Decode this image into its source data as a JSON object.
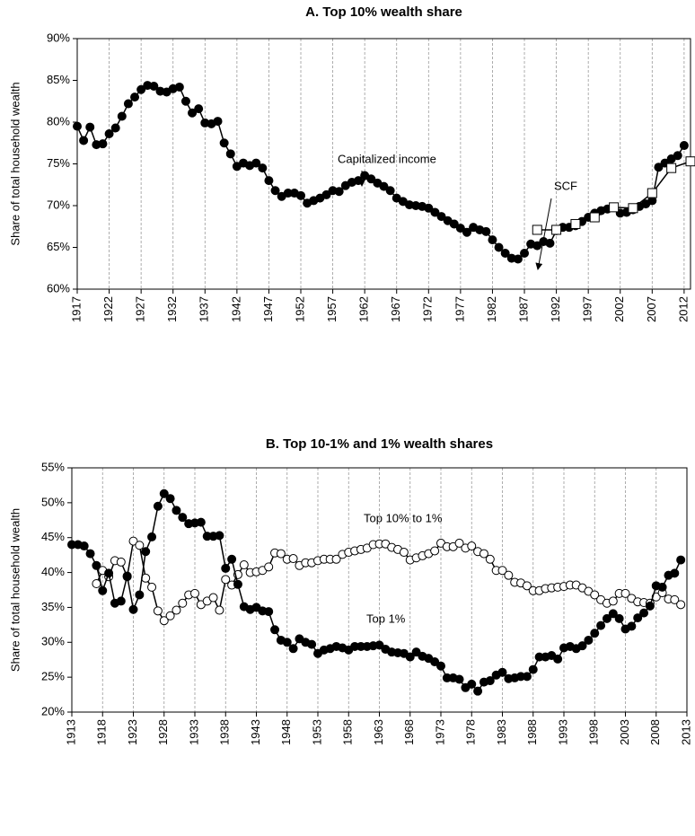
{
  "chart_data": [
    {
      "type": "line",
      "title": "A. Top 10% wealth share",
      "y_label": "Share of total household wealth",
      "annotations": [
        "Capitalized income",
        "SCF"
      ],
      "xlim": [
        1917,
        2013
      ],
      "xticks": [
        1917,
        1922,
        1927,
        1932,
        1937,
        1942,
        1947,
        1952,
        1957,
        1962,
        1967,
        1972,
        1977,
        1982,
        1987,
        1992,
        1997,
        2002,
        2007,
        2012
      ],
      "ylim": [
        60,
        90
      ],
      "yticks": [
        {
          "value": 60,
          "label": "60%"
        },
        {
          "value": 65,
          "label": "65%"
        },
        {
          "value": 70,
          "label": "70%"
        },
        {
          "value": 75,
          "label": "75%"
        },
        {
          "value": 80,
          "label": "80%"
        },
        {
          "value": 85,
          "label": "85%"
        },
        {
          "value": 90,
          "label": "90%"
        }
      ],
      "grid": true,
      "series": [
        {
          "marker": "filled-circle",
          "color": "#000000",
          "x": [
            1917,
            1918,
            1919,
            1920,
            1921,
            1922,
            1923,
            1924,
            1925,
            1926,
            1927,
            1928,
            1929,
            1930,
            1931,
            1932,
            1933,
            1934,
            1935,
            1936,
            1937,
            1938,
            1939,
            1940,
            1941,
            1942,
            1943,
            1944,
            1945,
            1946,
            1947,
            1948,
            1949,
            1950,
            1951,
            1952,
            1953,
            1954,
            1955,
            1956,
            1957,
            1958,
            1959,
            1960,
            1961,
            1962,
            1963,
            1964,
            1965,
            1966,
            1967,
            1968,
            1969,
            1970,
            1971,
            1972,
            1973,
            1974,
            1975,
            1976,
            1977,
            1978,
            1979,
            1980,
            1981,
            1982,
            1983,
            1984,
            1985,
            1986,
            1987,
            1988,
            1989,
            1990,
            1991,
            1992,
            1993,
            1994,
            1995,
            1996,
            1997,
            1998,
            1999,
            2000,
            2001,
            2002,
            2003,
            2004,
            2005,
            2006,
            2007,
            2008,
            2009,
            2010,
            2011,
            2012
          ],
          "values": [
            79.5,
            77.8,
            79.4,
            77.3,
            77.4,
            78.6,
            79.3,
            80.7,
            82.2,
            83.0,
            83.9,
            84.4,
            84.3,
            83.7,
            83.6,
            84.0,
            84.2,
            82.5,
            81.1,
            81.6,
            79.9,
            79.8,
            80.1,
            77.5,
            76.2,
            74.7,
            75.1,
            74.8,
            75.1,
            74.5,
            73.0,
            71.8,
            71.1,
            71.5,
            71.5,
            71.2,
            70.3,
            70.6,
            70.9,
            71.3,
            71.8,
            71.7,
            72.4,
            72.8,
            73.0,
            73.6,
            73.2,
            72.7,
            72.3,
            71.8,
            70.9,
            70.5,
            70.1,
            70.0,
            69.9,
            69.7,
            69.2,
            68.7,
            68.2,
            67.8,
            67.3,
            66.8,
            67.4,
            67.1,
            66.9,
            65.9,
            65.0,
            64.3,
            63.7,
            63.6,
            64.3,
            65.4,
            65.2,
            65.7,
            65.5,
            67.0,
            67.4,
            67.4,
            67.6,
            68.1,
            68.6,
            69.1,
            69.4,
            69.6,
            69.8,
            69.1,
            69.2,
            69.5,
            69.9,
            70.2,
            70.6,
            74.6,
            75.1,
            75.6,
            76.0,
            77.2
          ]
        },
        {
          "marker": "open-square",
          "color": "#000000",
          "x": [
            1989,
            1992,
            1995,
            1998,
            2001,
            2004,
            2007,
            2010,
            2013
          ],
          "values": [
            67.1,
            67.1,
            67.8,
            68.6,
            69.8,
            69.7,
            71.5,
            74.5,
            75.3
          ]
        }
      ]
    },
    {
      "type": "line",
      "title": "B. Top 10-1% and 1% wealth shares",
      "y_label": "Share of total household wealth",
      "annotations": [
        "Top 10% to 1%",
        "Top 1%"
      ],
      "xlim": [
        1913,
        2013
      ],
      "xticks": [
        1913,
        1918,
        1923,
        1928,
        1933,
        1938,
        1943,
        1948,
        1953,
        1958,
        1963,
        1968,
        1973,
        1978,
        1983,
        1988,
        1993,
        1998,
        2003,
        2008,
        2013
      ],
      "ylim": [
        20,
        55
      ],
      "yticks": [
        {
          "value": 20,
          "label": "20%"
        },
        {
          "value": 25,
          "label": "25%"
        },
        {
          "value": 30,
          "label": "30%"
        },
        {
          "value": 35,
          "label": "35%"
        },
        {
          "value": 40,
          "label": "40%"
        },
        {
          "value": 45,
          "label": "45%"
        },
        {
          "value": 50,
          "label": "50%"
        },
        {
          "value": 55,
          "label": "55%"
        }
      ],
      "grid": true,
      "x": [
        1913,
        1914,
        1915,
        1916,
        1917,
        1918,
        1919,
        1920,
        1921,
        1922,
        1923,
        1924,
        1925,
        1926,
        1927,
        1928,
        1929,
        1930,
        1931,
        1932,
        1933,
        1934,
        1935,
        1936,
        1937,
        1938,
        1939,
        1940,
        1941,
        1942,
        1943,
        1944,
        1945,
        1946,
        1947,
        1948,
        1949,
        1950,
        1951,
        1952,
        1953,
        1954,
        1955,
        1956,
        1957,
        1958,
        1959,
        1960,
        1961,
        1962,
        1963,
        1964,
        1965,
        1966,
        1967,
        1968,
        1969,
        1970,
        1971,
        1972,
        1973,
        1974,
        1975,
        1976,
        1977,
        1978,
        1979,
        1980,
        1981,
        1982,
        1983,
        1984,
        1985,
        1986,
        1987,
        1988,
        1989,
        1990,
        1991,
        1992,
        1993,
        1994,
        1995,
        1996,
        1997,
        1998,
        1999,
        2000,
        2001,
        2002,
        2003,
        2004,
        2005,
        2006,
        2007,
        2008,
        2009,
        2010,
        2011,
        2012
      ],
      "series": [
        {
          "marker": "open-circle",
          "color": "#000000",
          "values": [
            null,
            null,
            null,
            null,
            38.4,
            40.3,
            39.4,
            41.7,
            41.5,
            39.4,
            44.5,
            43.9,
            39.2,
            37.9,
            34.5,
            33.1,
            33.8,
            34.6,
            35.6,
            36.8,
            37.0,
            35.4,
            35.9,
            36.4,
            34.6,
            39.0,
            38.2,
            39.7,
            41.1,
            40.0,
            40.1,
            40.3,
            40.8,
            42.8,
            42.7,
            41.9,
            42.0,
            41.0,
            41.4,
            41.4,
            41.7,
            41.9,
            41.9,
            41.9,
            42.6,
            42.9,
            43.1,
            43.3,
            43.5,
            44.0,
            44.1,
            44.1,
            43.6,
            43.3,
            42.9,
            41.8,
            42.1,
            42.4,
            42.7,
            43.1,
            44.2,
            43.7,
            43.7,
            44.2,
            43.5,
            43.8,
            43.0,
            42.7,
            41.9,
            40.3,
            40.3,
            39.6,
            38.6,
            38.5,
            38.1,
            37.4,
            37.4,
            37.7,
            37.8,
            37.9,
            38.0,
            38.2,
            38.2,
            37.8,
            37.3,
            36.8,
            36.1,
            35.6,
            35.9,
            37.0,
            37.0,
            36.3,
            35.8,
            35.7,
            35.6,
            36.5,
            37.1,
            36.2,
            36.1,
            35.4
          ]
        },
        {
          "marker": "filled-circle",
          "color": "#000000",
          "values": [
            44.0,
            44.0,
            43.8,
            42.7,
            41.0,
            37.4,
            39.9,
            35.6,
            35.9,
            39.5,
            34.7,
            36.8,
            43.0,
            45.1,
            49.5,
            51.3,
            50.6,
            48.9,
            47.9,
            47.0,
            47.1,
            47.2,
            45.2,
            45.2,
            45.3,
            40.6,
            41.9,
            38.3,
            35.1,
            34.7,
            35.0,
            34.5,
            34.4,
            31.8,
            30.3,
            30.0,
            29.1,
            30.5,
            30.0,
            29.7,
            28.4,
            28.9,
            29.1,
            29.4,
            29.2,
            28.9,
            29.4,
            29.4,
            29.4,
            29.5,
            29.6,
            29.0,
            28.6,
            28.5,
            28.4,
            27.9,
            28.6,
            28.0,
            27.7,
            27.2,
            26.6,
            24.9,
            24.9,
            24.7,
            23.5,
            24.0,
            23.0,
            24.3,
            24.5,
            25.3,
            25.7,
            24.8,
            24.9,
            25.1,
            25.1,
            26.1,
            27.9,
            27.9,
            28.1,
            27.6,
            29.2,
            29.4,
            29.1,
            29.5,
            30.3,
            31.3,
            32.4,
            33.4,
            34.1,
            33.4,
            31.9,
            32.3,
            33.5,
            34.2,
            35.2,
            38.1,
            37.9,
            39.6,
            39.9,
            41.8
          ]
        }
      ]
    }
  ]
}
